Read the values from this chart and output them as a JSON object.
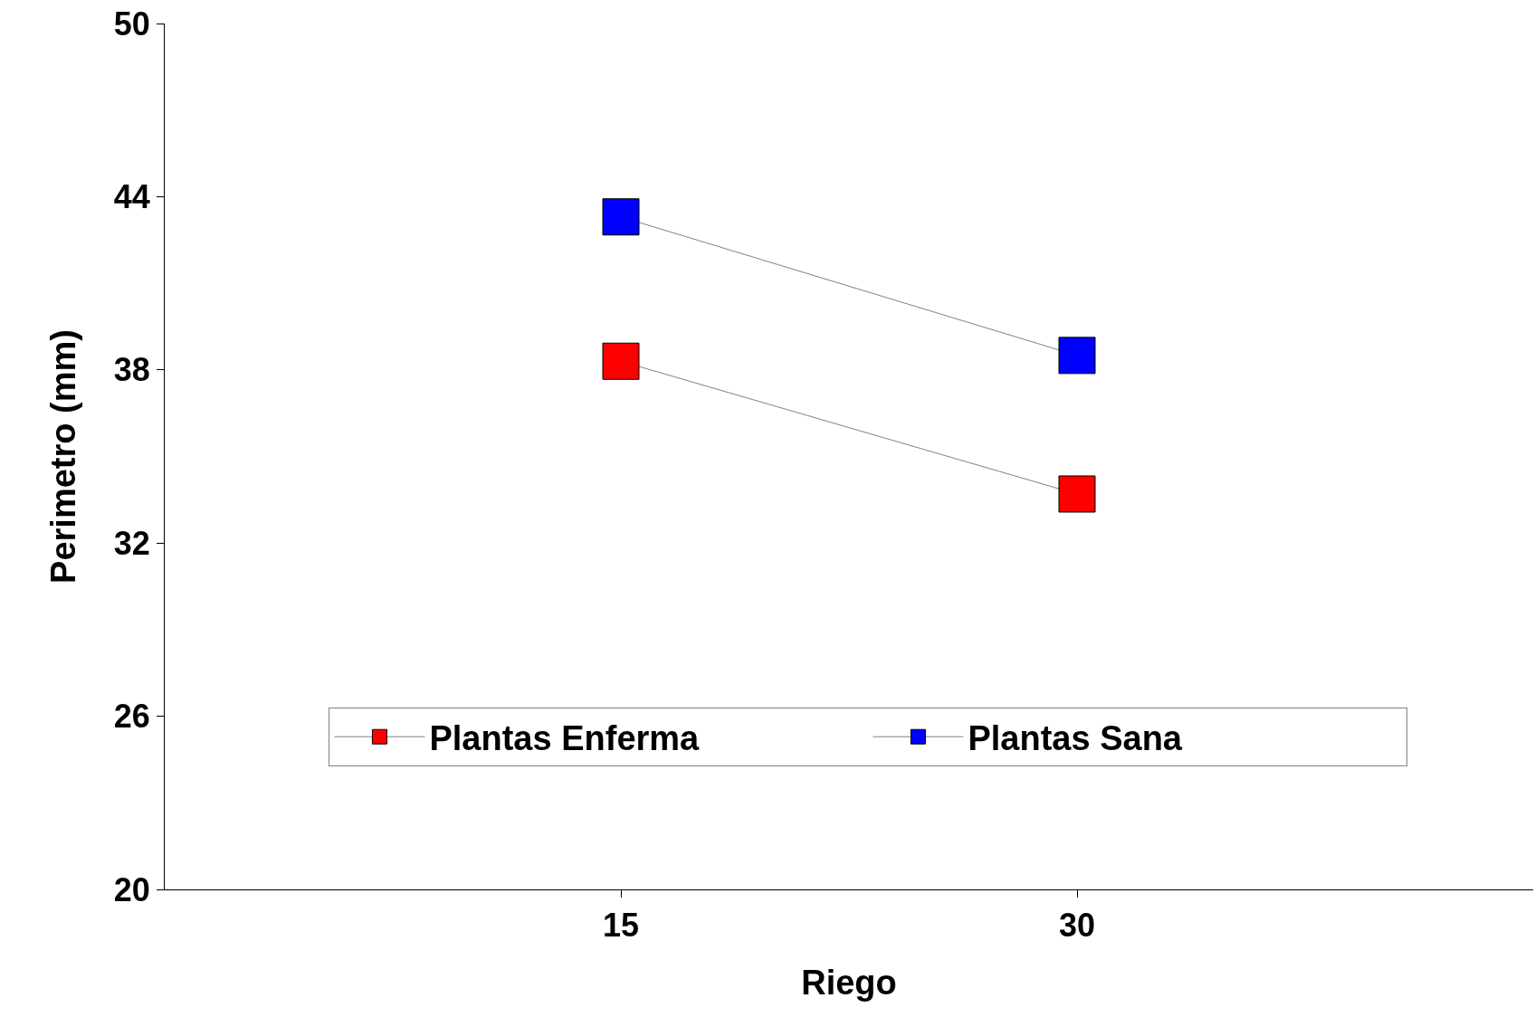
{
  "chart_data": {
    "type": "line",
    "xlabel": "Riego",
    "ylabel": "Perimetro (mm)",
    "x": [
      15,
      30
    ],
    "xlim": [
      0,
      45
    ],
    "xticks": [
      15,
      30
    ],
    "ylim": [
      20,
      50
    ],
    "yticks": [
      20,
      26,
      32,
      38,
      44,
      50
    ],
    "grid": false,
    "legend": "bottom",
    "marker": "square",
    "line_style": "solid",
    "series": [
      {
        "name": "Plantas Enferma",
        "color": "#ff0000",
        "values": [
          38.3,
          33.7
        ]
      },
      {
        "name": "Plantas Sana",
        "color": "#0000ff",
        "values": [
          43.3,
          38.5
        ]
      }
    ]
  }
}
